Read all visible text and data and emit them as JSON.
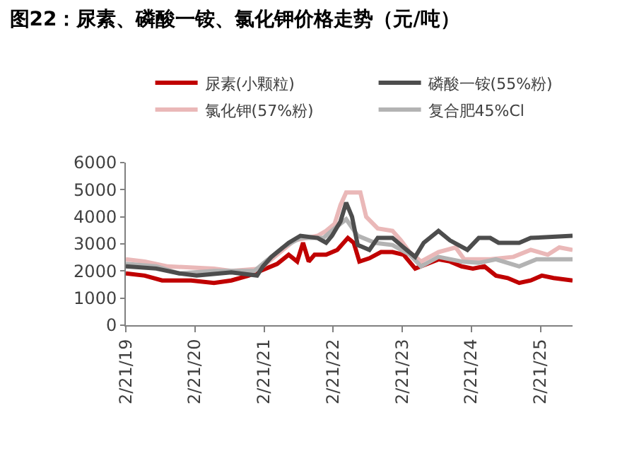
{
  "chart_data": {
    "type": "line",
    "title": "图22：尿素、磷酸一铵、氯化钾价格走势（元/吨）",
    "legend": "top",
    "grid": false,
    "line_style": "solid",
    "marker": "none",
    "xlim": [
      "2019-02-21",
      "2025-08-10"
    ],
    "xticks": [
      {
        "value": "2019-02-21",
        "label": "2/21/19"
      },
      {
        "value": "2020-02-21",
        "label": "2/21/20"
      },
      {
        "value": "2021-02-21",
        "label": "2/21/21"
      },
      {
        "value": "2022-02-21",
        "label": "2/21/22"
      },
      {
        "value": "2023-02-21",
        "label": "2/21/23"
      },
      {
        "value": "2024-02-21",
        "label": "2/21/24"
      },
      {
        "value": "2025-02-21",
        "label": "2/21/25"
      }
    ],
    "ylim": [
      0,
      6000
    ],
    "yticks": [
      0,
      1000,
      2000,
      3000,
      4000,
      5000,
      6000
    ],
    "series": [
      {
        "name": "尿素(小颗粒)",
        "color": "#c00000",
        "x": [
          "2019-02-21",
          "2019-06-01",
          "2019-09-01",
          "2020-02-01",
          "2020-06-01",
          "2020-09-01",
          "2020-12-01",
          "2021-02-01",
          "2021-05-01",
          "2021-07-01",
          "2021-08-15",
          "2021-09-15",
          "2021-10-15",
          "2021-11-15",
          "2022-01-15",
          "2022-03-15",
          "2022-05-10",
          "2022-06-10",
          "2022-07-10",
          "2022-09-01",
          "2022-11-01",
          "2023-01-01",
          "2023-03-01",
          "2023-05-01",
          "2023-07-01",
          "2023-09-01",
          "2023-11-01",
          "2024-01-01",
          "2024-03-01",
          "2024-05-01",
          "2024-07-01",
          "2024-09-01",
          "2024-11-01",
          "2025-01-01",
          "2025-03-01",
          "2025-05-01",
          "2025-08-10"
        ],
        "values": [
          1910,
          1830,
          1650,
          1650,
          1560,
          1650,
          1830,
          2000,
          2260,
          2600,
          2350,
          3040,
          2350,
          2600,
          2600,
          2780,
          3220,
          3040,
          2350,
          2470,
          2700,
          2700,
          2600,
          2090,
          2260,
          2430,
          2350,
          2170,
          2090,
          2170,
          1830,
          1740,
          1560,
          1650,
          1830,
          1740,
          1650
        ]
      },
      {
        "name": "磷酸一铵(55%粉)",
        "color": "#4d4d4d",
        "x": [
          "2019-02-21",
          "2019-08-01",
          "2019-12-01",
          "2020-03-01",
          "2020-09-01",
          "2021-01-15",
          "2021-02-15",
          "2021-04-01",
          "2021-07-01",
          "2021-09-01",
          "2021-12-01",
          "2022-01-15",
          "2022-02-15",
          "2022-04-01",
          "2022-05-01",
          "2022-06-01",
          "2022-07-01",
          "2022-09-01",
          "2022-10-15",
          "2023-01-01",
          "2023-03-01",
          "2023-05-01",
          "2023-06-15",
          "2023-09-01",
          "2023-11-01",
          "2024-02-01",
          "2024-04-01",
          "2024-06-01",
          "2024-07-15",
          "2024-11-01",
          "2025-01-01",
          "2025-08-10"
        ],
        "values": [
          2170,
          2090,
          1910,
          1830,
          1950,
          1830,
          2170,
          2520,
          3040,
          3300,
          3220,
          3040,
          3300,
          3830,
          4520,
          4000,
          2960,
          2780,
          3220,
          3220,
          2870,
          2520,
          3040,
          3480,
          3130,
          2780,
          3220,
          3220,
          3040,
          3040,
          3220,
          3300
        ]
      },
      {
        "name": "氯化钾(57%粉)",
        "color": "#eab8b8",
        "x": [
          "2019-02-21",
          "2019-06-01",
          "2019-10-01",
          "2020-06-01",
          "2020-09-01",
          "2021-02-01",
          "2021-04-01",
          "2021-08-01",
          "2021-12-01",
          "2022-01-15",
          "2022-03-01",
          "2022-04-01",
          "2022-05-01",
          "2022-07-15",
          "2022-08-15",
          "2022-10-15",
          "2023-01-01",
          "2023-02-15",
          "2023-04-01",
          "2023-06-01",
          "2023-09-01",
          "2023-12-01",
          "2024-01-15",
          "2024-06-01",
          "2024-10-01",
          "2025-01-01",
          "2025-04-01",
          "2025-06-01",
          "2025-08-10"
        ],
        "values": [
          2430,
          2350,
          2170,
          2090,
          2000,
          2090,
          2430,
          3130,
          3300,
          3480,
          3740,
          4430,
          4900,
          4900,
          4000,
          3570,
          3480,
          3130,
          2700,
          2350,
          2700,
          2870,
          2430,
          2430,
          2520,
          2780,
          2600,
          2870,
          2780
        ]
      },
      {
        "name": "复合肥45%Cl",
        "color": "#b3b3b3",
        "x": [
          "2019-02-21",
          "2019-08-01",
          "2019-12-01",
          "2020-06-01",
          "2021-01-01",
          "2021-03-01",
          "2021-06-01",
          "2021-09-01",
          "2022-01-01",
          "2022-03-01",
          "2022-05-01",
          "2022-07-01",
          "2022-10-01",
          "2023-01-01",
          "2023-04-01",
          "2023-06-01",
          "2023-09-01",
          "2024-01-01",
          "2024-04-01",
          "2024-07-01",
          "2024-11-01",
          "2025-02-01",
          "2025-08-10"
        ],
        "values": [
          2260,
          2170,
          1910,
          2000,
          2000,
          2350,
          2870,
          3220,
          3220,
          3570,
          3910,
          3300,
          3040,
          2960,
          2610,
          2170,
          2520,
          2350,
          2300,
          2430,
          2170,
          2430,
          2430
        ]
      }
    ]
  }
}
